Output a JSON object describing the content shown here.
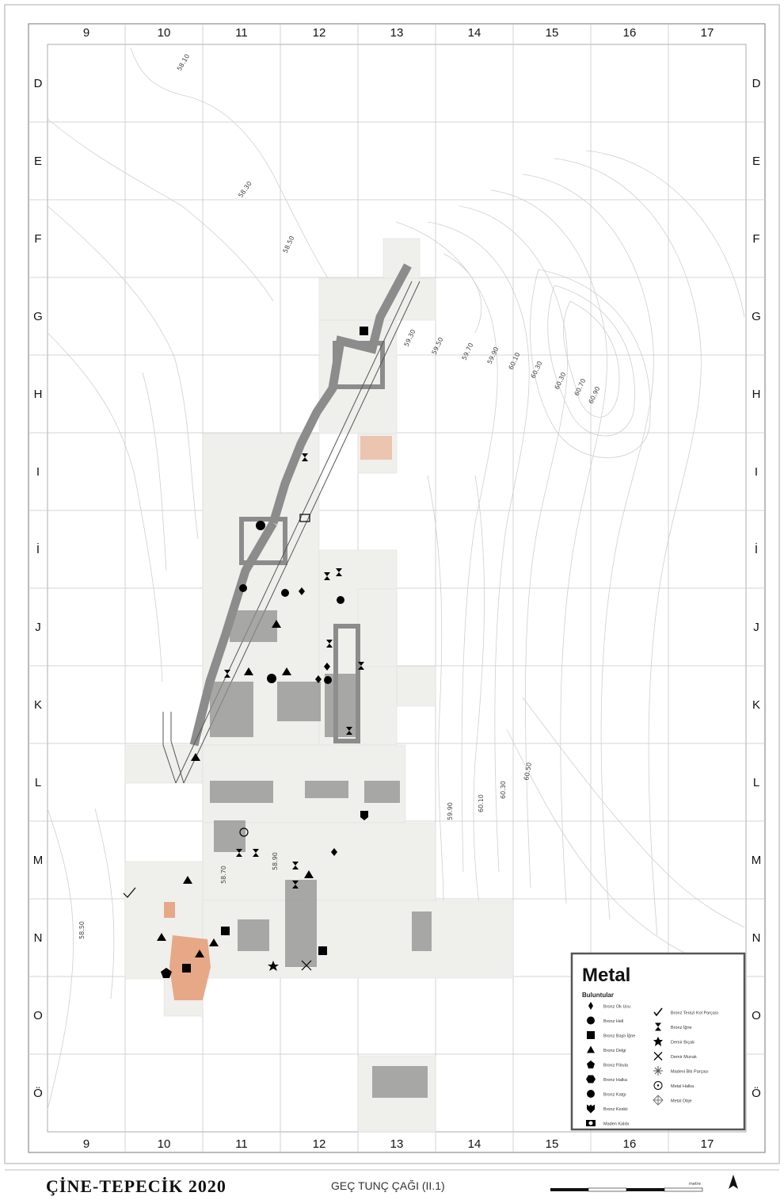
{
  "title": "ÇİNE-TEPECİK 2020",
  "subtitle": "GEÇ TUNÇ ÇAĞI (II.1)",
  "grid": {
    "columns": [
      "9",
      "10",
      "11",
      "12",
      "13",
      "14",
      "15",
      "16",
      "17"
    ],
    "rows": [
      "D",
      "E",
      "F",
      "G",
      "H",
      "I",
      "İ",
      "J",
      "K",
      "L",
      "M",
      "N",
      "O",
      "Ö"
    ]
  },
  "contour_labels": [
    "58.10",
    "58.30",
    "58.50",
    "59.30",
    "59.50",
    "59.70",
    "59.90",
    "60.10",
    "60.30",
    "60.30",
    "60.70",
    "60.90",
    "60.50",
    "59.90",
    "60.10",
    "60.30",
    "58.50",
    "58.70",
    "58.90"
  ],
  "legend": {
    "title": "Metal",
    "subtitle": "Buluntular",
    "items_left": [
      {
        "icon": "diamond-icon",
        "label": "Bronz Ok Ucu"
      },
      {
        "icon": "circle-icon",
        "label": "Bronz Hell"
      },
      {
        "icon": "square-icon",
        "label": "Bronz Başlı İğne"
      },
      {
        "icon": "triangle-icon",
        "label": "Bronz Delgi"
      },
      {
        "icon": "pentagon-icon",
        "label": "Bronz Fibula"
      },
      {
        "icon": "hexagon-icon",
        "label": "Bronz Halka"
      },
      {
        "icon": "circle-icon",
        "label": "Bronz Katgı"
      },
      {
        "icon": "shield-icon",
        "label": "Bronz Keskii"
      },
      {
        "icon": "mold-icon",
        "label": "Maden Kalıbı"
      }
    ],
    "items_right": [
      {
        "icon": "check-icon",
        "label": "Bronz Terazi Kol Parçası"
      },
      {
        "icon": "hourglass-icon",
        "label": "Bronz İğne"
      },
      {
        "icon": "star-icon",
        "label": "Demir Bıçak"
      },
      {
        "icon": "cross-icon",
        "label": "Demir Mızrak"
      },
      {
        "icon": "asterisk-icon",
        "label": "Madeni Bitı Parçası"
      },
      {
        "icon": "ring-icon",
        "label": "Metal Halka"
      },
      {
        "icon": "diamond-outline-icon",
        "label": "Metal Obje"
      }
    ]
  },
  "scale_bar_label": "metre"
}
